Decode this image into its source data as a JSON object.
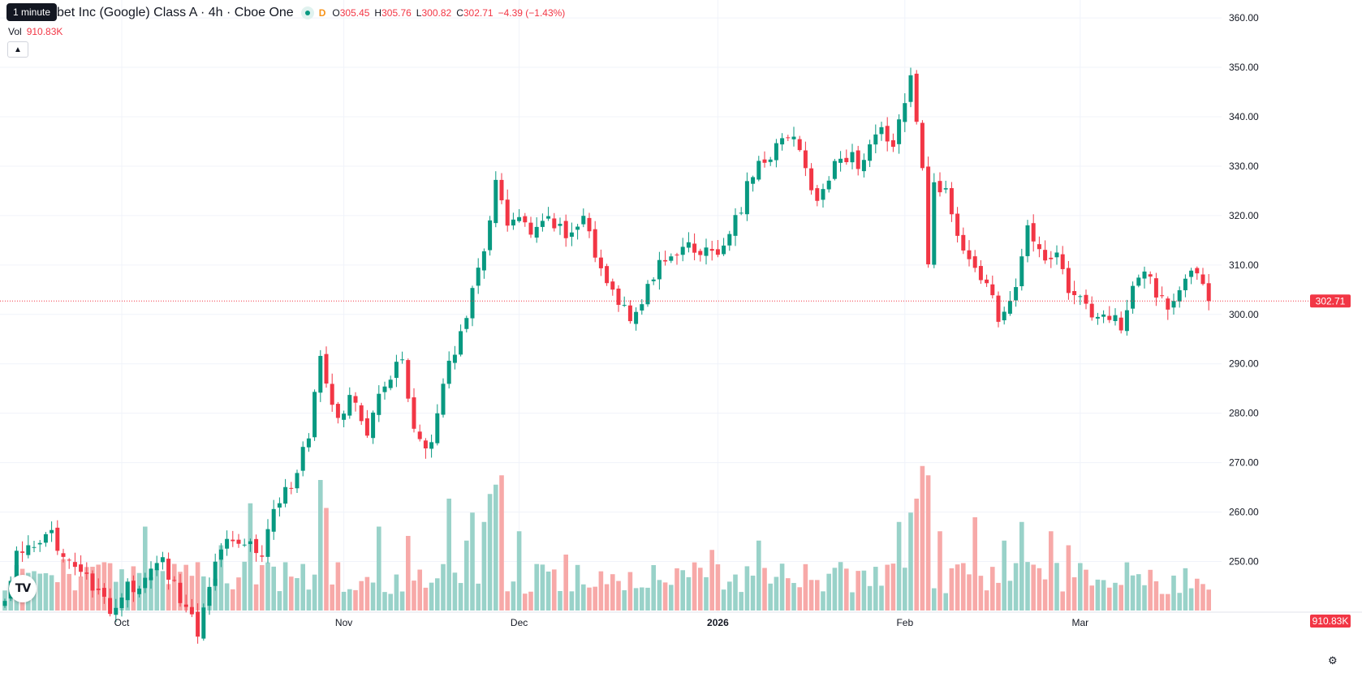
{
  "legend": {
    "title": "bet Inc (Google) Class A · 4h · Cboe One",
    "tooltip": "1 minute",
    "d_badge": "D",
    "open_label": "O",
    "open": "305.45",
    "high_label": "H",
    "high": "305.76",
    "low_label": "L",
    "low": "300.82",
    "close_label": "C",
    "close": "302.71",
    "change": "−4.39 (−1.43%)",
    "vol_label": "Vol",
    "vol_value": "910.83K"
  },
  "icons": {
    "collapse": "chevron-up-icon",
    "logo": "tradingview-logo-icon",
    "settings": "gear-icon"
  },
  "logo_text": "TV",
  "colors": {
    "up": "#089981",
    "down": "#f23645",
    "vol_up": "#99d2c9",
    "vol_down": "#f7a9a8",
    "grid": "#f0f3fa",
    "text": "#131722"
  },
  "chart_data": {
    "type": "candlestick",
    "interval": "4h",
    "y_ticks": [
      "250.00",
      "260.00",
      "270.00",
      "280.00",
      "290.00",
      "300.00",
      "310.00",
      "320.00",
      "330.00",
      "340.00",
      "350.00",
      "360.00"
    ],
    "ylim": [
      245,
      361
    ],
    "x_labels": [
      {
        "label": "Oct",
        "index": 20,
        "bold": false
      },
      {
        "label": "Nov",
        "index": 58,
        "bold": false
      },
      {
        "label": "Dec",
        "index": 88,
        "bold": false
      },
      {
        "label": "2026",
        "index": 122,
        "bold": true
      },
      {
        "label": "Feb",
        "index": 154,
        "bold": false
      },
      {
        "label": "Mar",
        "index": 184,
        "bold": false
      }
    ],
    "last_price": "302.71",
    "last_price_value": 302.71,
    "last_volume": "910.83K",
    "waypoints": [
      [
        0,
        241.5
      ],
      [
        2,
        252.5
      ],
      [
        5,
        252
      ],
      [
        8,
        255
      ],
      [
        10,
        252.5
      ],
      [
        14,
        246
      ],
      [
        18,
        240
      ],
      [
        21,
        244.5
      ],
      [
        24,
        246
      ],
      [
        27,
        250
      ],
      [
        30,
        243
      ],
      [
        33,
        236
      ],
      [
        35,
        246
      ],
      [
        38,
        256
      ],
      [
        41,
        254.5
      ],
      [
        44,
        251.5
      ],
      [
        46,
        261
      ],
      [
        49,
        266
      ],
      [
        52,
        275
      ],
      [
        54,
        291
      ],
      [
        57,
        278
      ],
      [
        59,
        283
      ],
      [
        62,
        277
      ],
      [
        65,
        286
      ],
      [
        68,
        291
      ],
      [
        70,
        277
      ],
      [
        73,
        273
      ],
      [
        75,
        286
      ],
      [
        78,
        297
      ],
      [
        80,
        304
      ],
      [
        82,
        312
      ],
      [
        84,
        328
      ],
      [
        86,
        318
      ],
      [
        88,
        319
      ],
      [
        90,
        315.5
      ],
      [
        93,
        319
      ],
      [
        96,
        316
      ],
      [
        99,
        320
      ],
      [
        102,
        308
      ],
      [
        105,
        303
      ],
      [
        107,
        300
      ],
      [
        110,
        305
      ],
      [
        113,
        312
      ],
      [
        116,
        313
      ],
      [
        120,
        313
      ],
      [
        123,
        313
      ],
      [
        126,
        322
      ],
      [
        128,
        329
      ],
      [
        130,
        331
      ],
      [
        132,
        334
      ],
      [
        134,
        337
      ],
      [
        137,
        330
      ],
      [
        139,
        322
      ],
      [
        141,
        328
      ],
      [
        143,
        333
      ],
      [
        146,
        331
      ],
      [
        148,
        333
      ],
      [
        150,
        337
      ],
      [
        152,
        334
      ],
      [
        154,
        344
      ],
      [
        155,
        347
      ],
      [
        157,
        330
      ],
      [
        158,
        309
      ],
      [
        159,
        327
      ],
      [
        161,
        324
      ],
      [
        163,
        317
      ],
      [
        166,
        309
      ],
      [
        168,
        305
      ],
      [
        170,
        300
      ],
      [
        173,
        304
      ],
      [
        175,
        318
      ],
      [
        177,
        313
      ],
      [
        180,
        311
      ],
      [
        182,
        305
      ],
      [
        185,
        302
      ],
      [
        187,
        298
      ],
      [
        189,
        300
      ],
      [
        191,
        297
      ],
      [
        193,
        306
      ],
      [
        195,
        309
      ],
      [
        197,
        304
      ],
      [
        199,
        302
      ],
      [
        201,
        306
      ],
      [
        203,
        310
      ],
      [
        205,
        307
      ],
      [
        206,
        302.71
      ]
    ],
    "volume_scale": [
      0,
      4000000
    ],
    "volume_spikes": [
      [
        7,
        800000
      ],
      [
        10,
        1100000
      ],
      [
        24,
        1800000
      ],
      [
        29,
        1000000
      ],
      [
        37,
        1400000
      ],
      [
        42,
        2300000
      ],
      [
        54,
        2800000
      ],
      [
        55,
        2200000
      ],
      [
        64,
        1800000
      ],
      [
        69,
        1600000
      ],
      [
        76,
        2400000
      ],
      [
        79,
        1500000
      ],
      [
        80,
        2100000
      ],
      [
        82,
        1900000
      ],
      [
        83,
        2500000
      ],
      [
        84,
        2700000
      ],
      [
        85,
        2900000
      ],
      [
        88,
        1700000
      ],
      [
        96,
        1200000
      ],
      [
        121,
        1300000
      ],
      [
        129,
        1500000
      ],
      [
        153,
        1900000
      ],
      [
        155,
        2100000
      ],
      [
        156,
        2400000
      ],
      [
        157,
        3100000
      ],
      [
        158,
        2900000
      ],
      [
        160,
        1700000
      ],
      [
        166,
        2000000
      ],
      [
        171,
        1500000
      ],
      [
        174,
        1900000
      ],
      [
        179,
        1700000
      ],
      [
        182,
        1400000
      ]
    ]
  }
}
